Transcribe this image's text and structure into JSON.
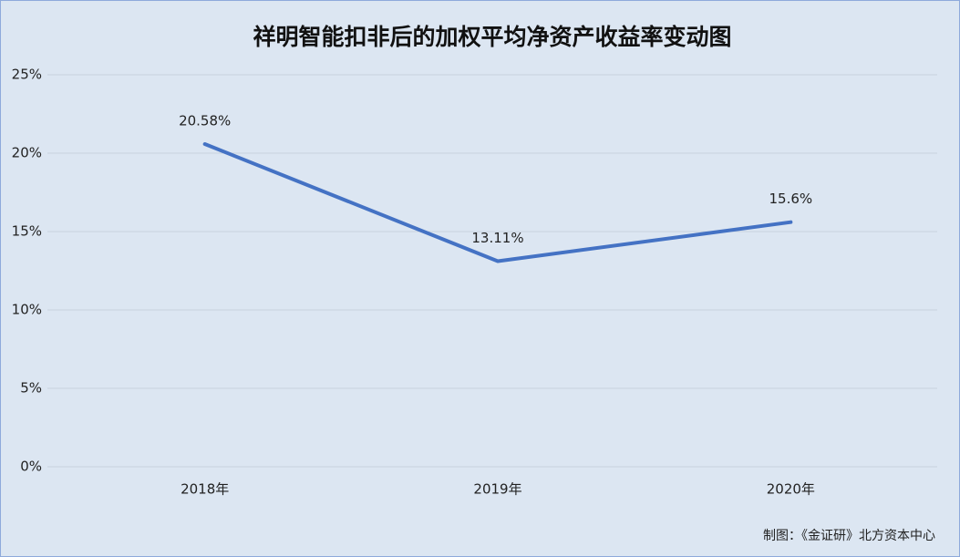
{
  "chart_data": {
    "type": "line",
    "title": "祥明智能扣非后的加权平均净资产收益率变动图",
    "categories": [
      "2018年",
      "2019年",
      "2020年"
    ],
    "series": [
      {
        "color": "#4472c4",
        "values": [
          20.58,
          13.11,
          15.6
        ],
        "value_labels": [
          "20.58%",
          "13.11%",
          "15.6%"
        ]
      }
    ],
    "ylim": [
      0,
      25
    ],
    "yticks": [
      {
        "value": 0,
        "label": "0%"
      },
      {
        "value": 5,
        "label": "5%"
      },
      {
        "value": 10,
        "label": "10%"
      },
      {
        "value": 15,
        "label": "15%"
      },
      {
        "value": 20,
        "label": "20%"
      },
      {
        "value": 25,
        "label": "25%"
      }
    ],
    "grid": true,
    "note": "制图：《金证研》北方资本中心"
  }
}
